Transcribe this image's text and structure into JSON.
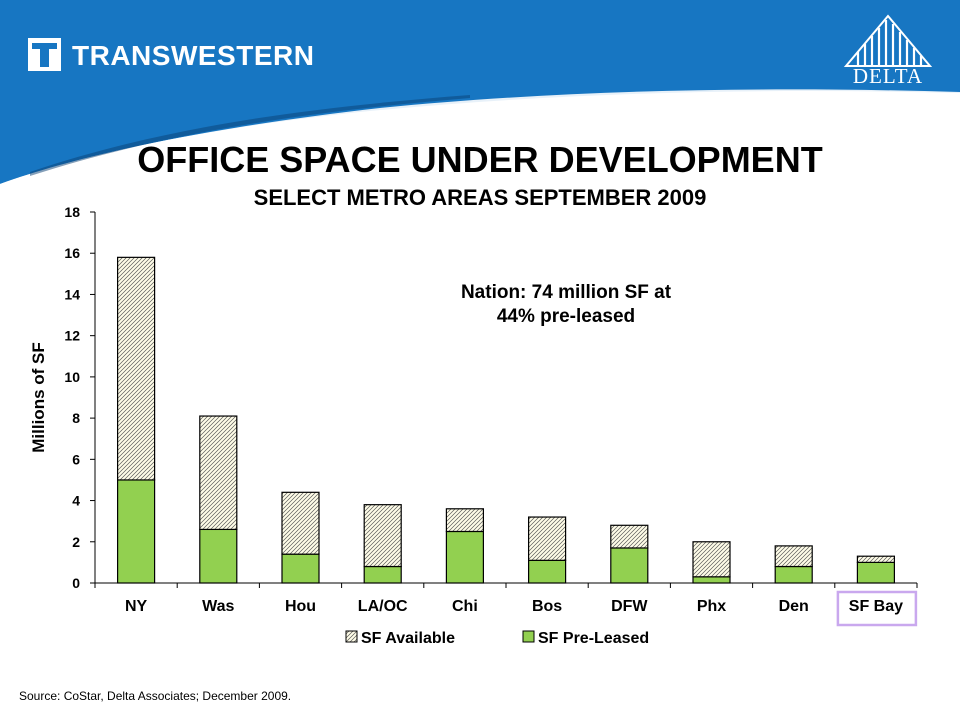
{
  "header": {
    "company": "TRANSWESTERN",
    "partner": "DELTA"
  },
  "title": "OFFICE SPACE UNDER DEVELOPMENT",
  "subtitle": "SELECT METRO AREAS   SEPTEMBER 2009",
  "annotation_lines": [
    "Nation: 74 million SF at",
    "44% pre-leased"
  ],
  "source": "Source: CoStar, Delta Associates; December 2009.",
  "colors": {
    "header_blue": "#1776c2",
    "preleased": "#92d050",
    "available_bg": "#fffde8",
    "hatch": "#5a5a5a",
    "highlight": "#c9a8ee"
  },
  "chart_data": {
    "type": "bar",
    "stacked": true,
    "categories": [
      "NY",
      "Was",
      "Hou",
      "LA/OC",
      "Chi",
      "Bos",
      "DFW",
      "Phx",
      "Den",
      "SF Bay"
    ],
    "series": [
      {
        "name": "SF Pre-Leased",
        "values": [
          5.0,
          2.6,
          1.4,
          0.8,
          2.5,
          1.1,
          1.7,
          0.3,
          0.8,
          1.0
        ]
      },
      {
        "name": "SF Available",
        "values": [
          10.8,
          5.5,
          3.0,
          3.0,
          1.1,
          2.1,
          1.1,
          1.7,
          1.0,
          0.3
        ]
      }
    ],
    "legend_order": [
      "SF Available",
      "SF Pre-Leased"
    ],
    "ylabel": "Millions of SF",
    "xlabel": "",
    "ylim": [
      0,
      18
    ],
    "yticks": [
      0,
      2,
      4,
      6,
      8,
      10,
      12,
      14,
      16,
      18
    ],
    "grid": false,
    "legend_position": "bottom",
    "highlighted_category": "SF Bay"
  }
}
